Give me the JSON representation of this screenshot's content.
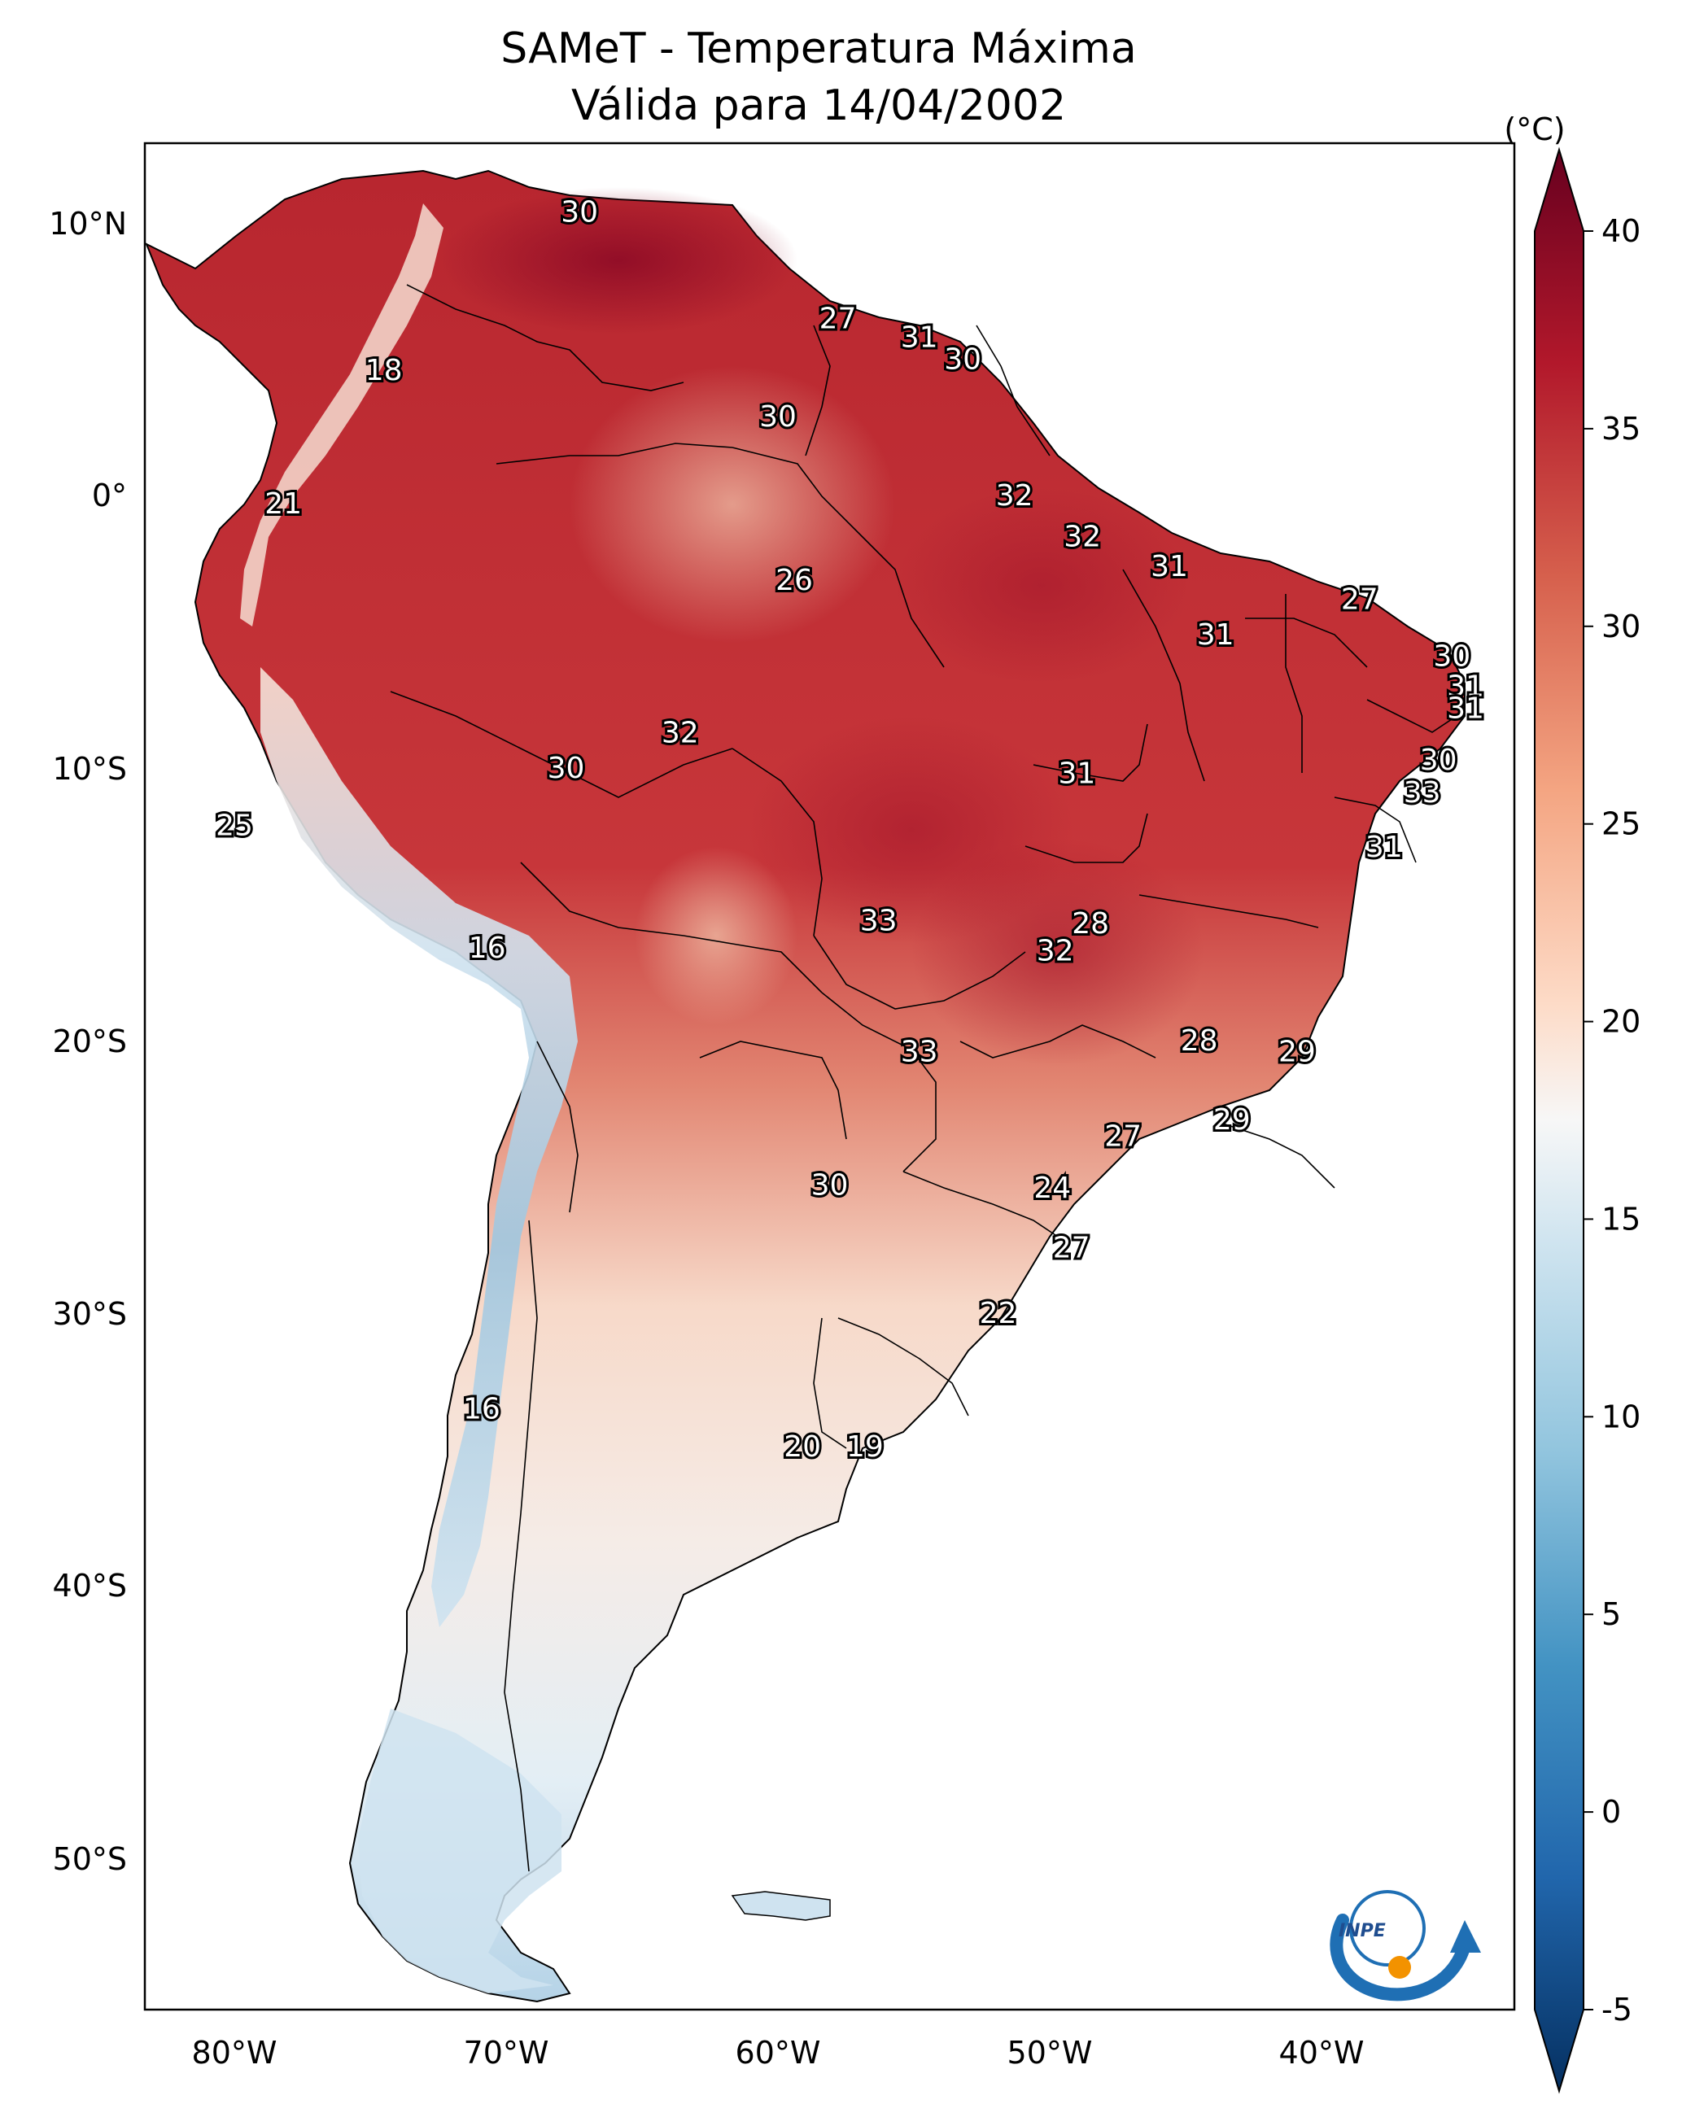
{
  "title_line1": "SAMeT - Temperatura Máxima",
  "title_line2": "Válida para 14/04/2002",
  "colorbar": {
    "unit": "(°C)",
    "ticks": [
      "40",
      "35",
      "30",
      "25",
      "20",
      "15",
      "10",
      "5",
      "0",
      "-5"
    ]
  },
  "axes": {
    "lon_labels": [
      "80°W",
      "70°W",
      "60°W",
      "50°W",
      "40°W"
    ],
    "lat_labels": [
      "10°N",
      "0°",
      "10°S",
      "20°S",
      "30°S",
      "40°S",
      "50°S"
    ]
  },
  "logo_text": "INPE",
  "chart_data": {
    "type": "heatmap",
    "variable": "Temperatura Máxima",
    "unit": "°C",
    "date": "14/04/2002",
    "value_range": [
      -5,
      40
    ],
    "lon_range": [
      -83,
      -33
    ],
    "lat_range": [
      -57,
      13
    ],
    "points": [
      {
        "label": "30",
        "lon": -67.3,
        "lat": 10.4
      },
      {
        "label": "27",
        "lon": -57.8,
        "lat": 6.5
      },
      {
        "label": "31",
        "lon": -54.8,
        "lat": 5.8
      },
      {
        "label": "30",
        "lon": -53.2,
        "lat": 5.0
      },
      {
        "label": "18",
        "lon": -74.5,
        "lat": 4.6
      },
      {
        "label": "30",
        "lon": -60.0,
        "lat": 2.9
      },
      {
        "label": "32",
        "lon": -51.3,
        "lat": 0.0
      },
      {
        "label": "21",
        "lon": -78.2,
        "lat": -0.3
      },
      {
        "label": "32",
        "lon": -48.8,
        "lat": -1.5
      },
      {
        "label": "31",
        "lon": -45.6,
        "lat": -2.6
      },
      {
        "label": "26",
        "lon": -59.4,
        "lat": -3.1
      },
      {
        "label": "27",
        "lon": -38.6,
        "lat": -3.8
      },
      {
        "label": "31",
        "lon": -43.9,
        "lat": -5.1
      },
      {
        "label": "30",
        "lon": -35.2,
        "lat": -5.9
      },
      {
        "label": "31",
        "lon": -34.7,
        "lat": -7.0
      },
      {
        "label": "31",
        "lon": -34.7,
        "lat": -7.8
      },
      {
        "label": "32",
        "lon": -63.6,
        "lat": -8.7
      },
      {
        "label": "30",
        "lon": -35.7,
        "lat": -9.7
      },
      {
        "label": "30",
        "lon": -67.8,
        "lat": -10.0
      },
      {
        "label": "31",
        "lon": -49.0,
        "lat": -10.2
      },
      {
        "label": "33",
        "lon": -36.3,
        "lat": -10.9
      },
      {
        "label": "25",
        "lon": -80.0,
        "lat": -12.1
      },
      {
        "label": "31",
        "lon": -37.7,
        "lat": -12.9
      },
      {
        "label": "33",
        "lon": -56.3,
        "lat": -15.6
      },
      {
        "label": "28",
        "lon": -48.5,
        "lat": -15.7
      },
      {
        "label": "16",
        "lon": -70.7,
        "lat": -16.6
      },
      {
        "label": "32",
        "lon": -49.8,
        "lat": -16.7
      },
      {
        "label": "28",
        "lon": -44.5,
        "lat": -20.0
      },
      {
        "label": "29",
        "lon": -40.9,
        "lat": -20.4
      },
      {
        "label": "33",
        "lon": -54.8,
        "lat": -20.4
      },
      {
        "label": "29",
        "lon": -43.3,
        "lat": -22.9
      },
      {
        "label": "27",
        "lon": -47.3,
        "lat": -23.5
      },
      {
        "label": "30",
        "lon": -58.1,
        "lat": -25.3
      },
      {
        "label": "24",
        "lon": -49.9,
        "lat": -25.4
      },
      {
        "label": "27",
        "lon": -49.2,
        "lat": -27.6
      },
      {
        "label": "22",
        "lon": -51.9,
        "lat": -30.0
      },
      {
        "label": "16",
        "lon": -70.9,
        "lat": -33.5
      },
      {
        "label": "20",
        "lon": -59.1,
        "lat": -34.9
      },
      {
        "label": "19",
        "lon": -56.8,
        "lat": -34.9
      }
    ]
  }
}
